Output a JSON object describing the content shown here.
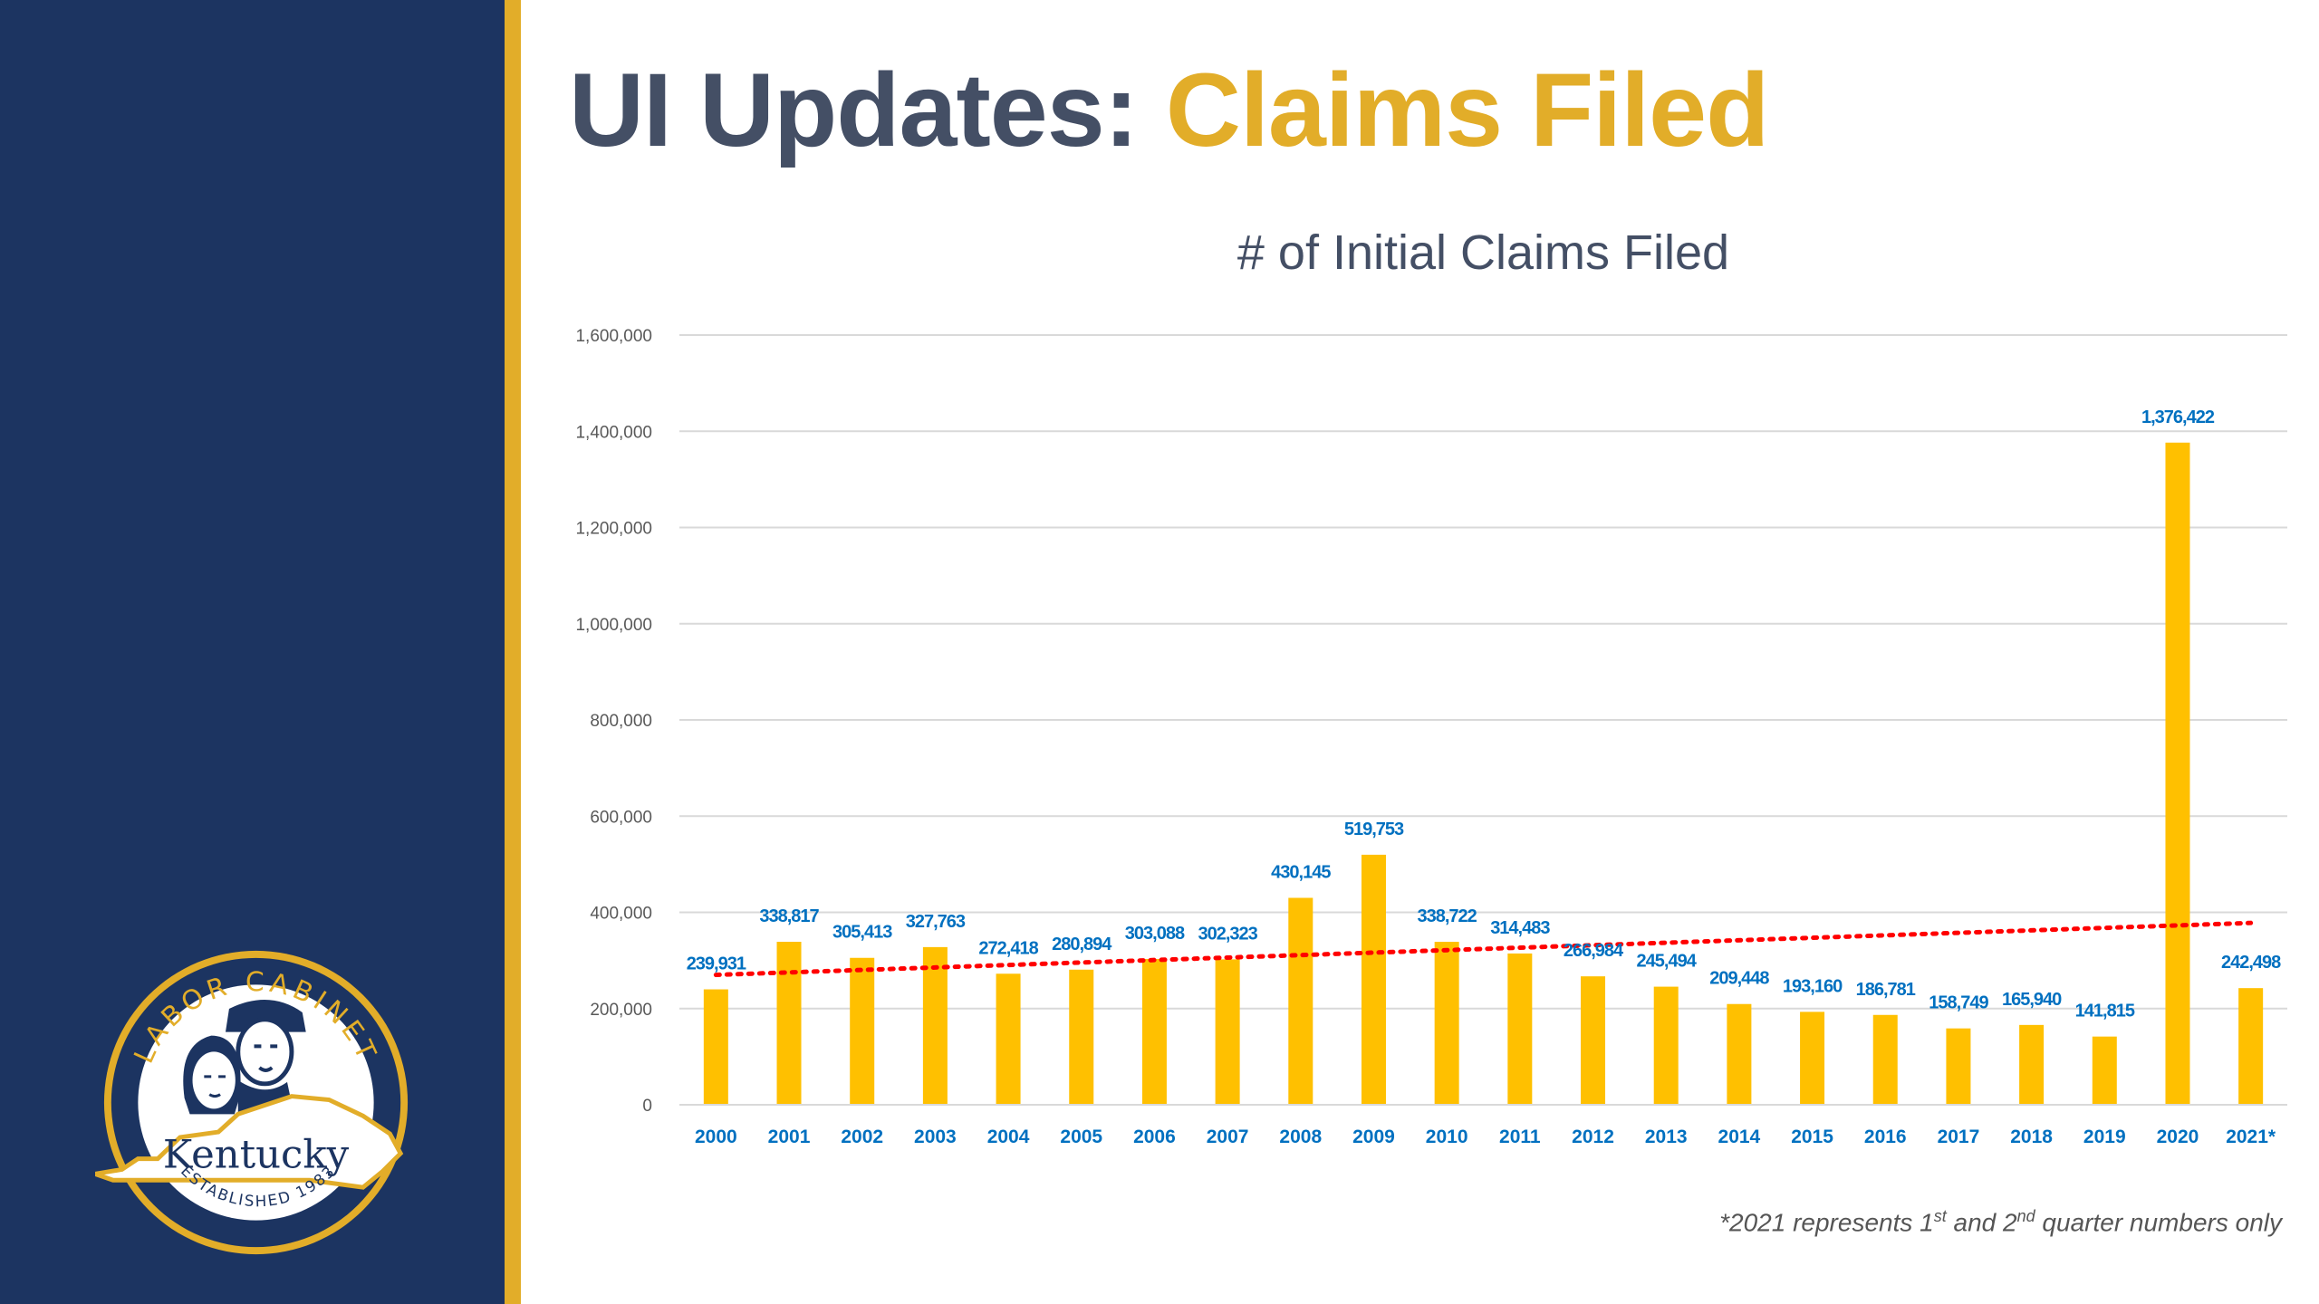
{
  "slide": {
    "title_main": "UI Updates:",
    "title_accent": "Claims Filed",
    "footnote": {
      "prefix": "*2021 represents 1",
      "sup1": "st",
      "middle": " and 2",
      "sup2": "nd",
      "suffix": " quarter numbers only"
    }
  },
  "logo": {
    "arc_top": "LABOR CABINET",
    "state": "Kentucky",
    "arc_bottom": "ESTABLISHED 1983"
  },
  "colors": {
    "sidebar": "#1c3461",
    "accent_gold": "#e2ad29",
    "bar": "#ffc000",
    "data_label": "#0070c0",
    "trendline": "#ff0000",
    "title_gray": "#444f65"
  },
  "chart_data": {
    "type": "bar",
    "title": "# of Initial Claims Filed",
    "xlabel": "",
    "ylabel": "",
    "categories": [
      "2000",
      "2001",
      "2002",
      "2003",
      "2004",
      "2005",
      "2006",
      "2007",
      "2008",
      "2009",
      "2010",
      "2011",
      "2012",
      "2013",
      "2014",
      "2015",
      "2016",
      "2017",
      "2018",
      "2019",
      "2020",
      "2021*"
    ],
    "values": [
      239931,
      338817,
      305413,
      327763,
      272418,
      280894,
      303088,
      302323,
      430145,
      519753,
      338722,
      314483,
      266984,
      245494,
      209448,
      193160,
      186781,
      158749,
      165940,
      141815,
      1376422,
      242498
    ],
    "data_labels": [
      "239,931",
      "338,817",
      "305,413",
      "327,763",
      "272,418",
      "280,894",
      "303,088",
      "302,323",
      "430,145",
      "519,753",
      "338,722",
      "314,483",
      "266,984",
      "245,494",
      "209,448",
      "193,160",
      "186,781",
      "158,749",
      "165,940",
      "141,815",
      "1,376,422",
      "242,498"
    ],
    "ylim": [
      0,
      1600000
    ],
    "yticks": [
      0,
      200000,
      400000,
      600000,
      800000,
      1000000,
      1200000,
      1400000,
      1600000
    ],
    "ytick_labels": [
      "0",
      "200,000",
      "400,000",
      "600,000",
      "800,000",
      "1,000,000",
      "1,200,000",
      "1,400,000",
      "1,600,000"
    ],
    "trendline": {
      "type": "linear",
      "style": "dotted",
      "start": 270000,
      "end": 378000
    },
    "grid": true,
    "legend": "none"
  }
}
